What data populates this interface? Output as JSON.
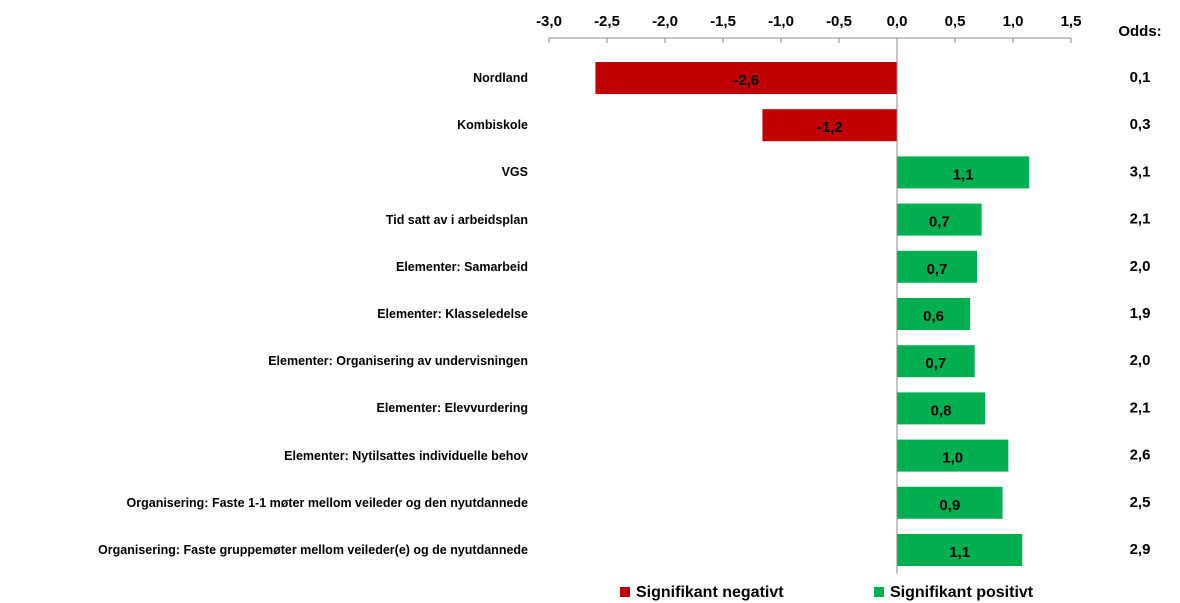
{
  "chart_data": {
    "type": "hbar",
    "categories": [
      "Nordland",
      "Kombiskole",
      "VGS",
      "Tid satt av  i arbeidsplan",
      "Elementer: Samarbeid",
      "Elementer: Klasseledelse",
      "Elementer: Organisering av undervisningen",
      "Elementer: Elevvurdering",
      "Elementer: Nytilsattes individuelle behov",
      "Organisering: Faste 1-1 møter mellom veileder og den nyutdannede",
      "Organisering: Faste gruppemøter mellom veileder(e) og de nyutdannede"
    ],
    "series": [
      {
        "name": "Signifikant negativt",
        "color": "#c00000",
        "values": [
          -2.6,
          -1.16,
          null,
          null,
          null,
          null,
          null,
          null,
          null,
          null,
          null
        ],
        "value_labels": [
          "-2,6",
          "-1,2",
          null,
          null,
          null,
          null,
          null,
          null,
          null,
          null,
          null
        ]
      },
      {
        "name": "Signifikant positivt",
        "color": "#00b050",
        "values": [
          null,
          null,
          1.14,
          0.73,
          0.69,
          0.63,
          0.67,
          0.76,
          0.96,
          0.91,
          1.08
        ],
        "value_labels": [
          null,
          null,
          "1,1",
          "0,7",
          "0,7",
          "0,6",
          "0,7",
          "0,8",
          "1,0",
          "0,9",
          "1,1"
        ]
      }
    ],
    "xlim": [
      -3.0,
      1.5
    ],
    "xticks": [
      {
        "value": -3.0,
        "label": "-3,0"
      },
      {
        "value": -2.5,
        "label": "-2,5"
      },
      {
        "value": -2.0,
        "label": "-2,0"
      },
      {
        "value": -1.5,
        "label": "-1,5"
      },
      {
        "value": -1.0,
        "label": "-1,0"
      },
      {
        "value": -0.5,
        "label": "-0,5"
      },
      {
        "value": 0.0,
        "label": "0,0"
      },
      {
        "value": 0.5,
        "label": "0,5"
      },
      {
        "value": 1.0,
        "label": "1,0"
      },
      {
        "value": 1.5,
        "label": "1,5"
      }
    ],
    "odds_title": "Odds:",
    "odds_labels": [
      "0,1",
      "0,3",
      "3,1",
      "2,1",
      "2,0",
      "1,9",
      "2,0",
      "2,1",
      "2,6",
      "2,5",
      "2,9"
    ]
  }
}
